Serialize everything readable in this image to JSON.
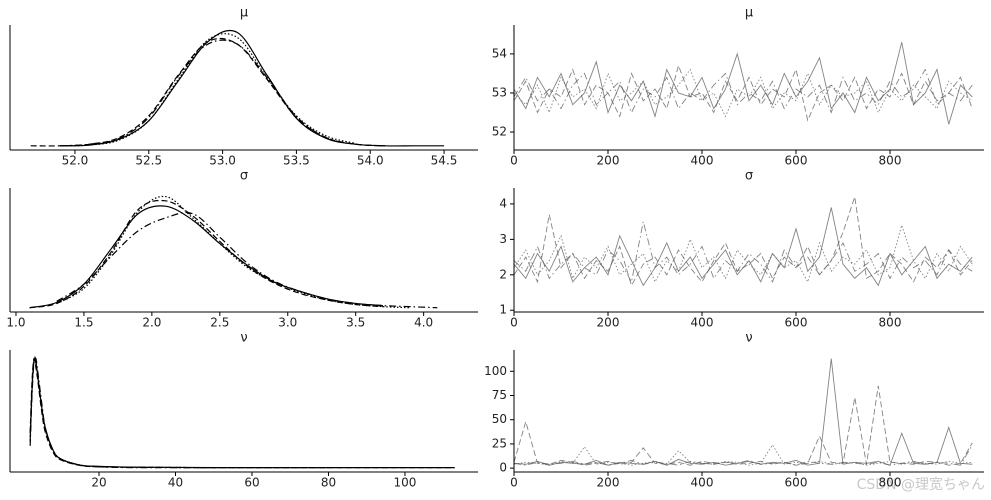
{
  "chart_data": [
    {
      "type": "line",
      "title": "μ",
      "color": "#000000",
      "x": [
        51.7,
        51.9,
        52.1,
        52.3,
        52.5,
        52.7,
        52.9,
        53.1,
        53.3,
        53.5,
        53.7,
        53.9,
        54.1,
        54.3,
        54.5
      ],
      "xlim": [
        51.56,
        54.73
      ],
      "xticks": [
        {
          "value": 52,
          "label": "52.0"
        },
        52.5,
        {
          "value": 53,
          "label": "53.0"
        },
        53.5,
        {
          "value": 54,
          "label": "54.0"
        },
        54.5
      ],
      "ylim": [
        -0.05,
        1.45
      ],
      "series": [
        {
          "linestyle": "solid",
          "values": [
            null,
            0.0,
            0.01,
            0.08,
            0.3,
            0.78,
            1.25,
            1.36,
            0.85,
            0.33,
            0.09,
            0.02,
            0.0,
            0.0,
            0.0
          ]
        },
        {
          "linestyle": "dashed",
          "values": [
            0.0,
            0.0,
            0.02,
            0.1,
            0.36,
            0.85,
            1.25,
            1.22,
            0.8,
            0.34,
            0.1,
            0.02,
            0.0,
            null,
            null
          ]
        },
        {
          "linestyle": "dotted",
          "values": [
            null,
            0.0,
            0.01,
            0.07,
            0.3,
            0.8,
            1.27,
            1.3,
            0.82,
            0.36,
            0.12,
            0.03,
            null,
            null,
            null
          ]
        },
        {
          "linestyle": "dashdot",
          "values": [
            null,
            0.0,
            0.02,
            0.09,
            0.34,
            0.84,
            1.22,
            1.22,
            0.82,
            0.35,
            0.1,
            0.02,
            0.0,
            null,
            null
          ]
        }
      ]
    },
    {
      "type": "line",
      "title": "μ",
      "color": "#5a5a5a",
      "x": [
        0,
        25,
        50,
        75,
        100,
        125,
        150,
        175,
        200,
        225,
        250,
        275,
        300,
        325,
        350,
        375,
        400,
        425,
        450,
        475,
        500,
        525,
        550,
        575,
        600,
        625,
        650,
        675,
        700,
        725,
        750,
        775,
        800,
        825,
        850,
        875,
        900,
        925,
        950,
        975
      ],
      "xlim": [
        0,
        1000
      ],
      "xticks": [
        0,
        200,
        400,
        600,
        800
      ],
      "ylim": [
        51.54,
        54.74
      ],
      "yticks": [
        52,
        53,
        54
      ],
      "series": [
        {
          "linestyle": "solid",
          "values": [
            53.1,
            52.6,
            53.4,
            52.9,
            53.5,
            52.7,
            53.0,
            53.8,
            52.5,
            53.2,
            52.8,
            53.3,
            52.4,
            53.6,
            53.0,
            52.9,
            53.4,
            52.6,
            53.1,
            54.0,
            52.8,
            53.2,
            52.7,
            53.5,
            52.9,
            53.3,
            53.9,
            52.6,
            53.0,
            52.5,
            53.4,
            52.8,
            53.1,
            54.3,
            52.7,
            53.0,
            53.6,
            52.2,
            53.2,
            52.9
          ]
        },
        {
          "linestyle": "dashed",
          "values": [
            52.8,
            53.3,
            52.5,
            53.1,
            52.9,
            53.6,
            52.7,
            53.2,
            53.0,
            52.4,
            53.5,
            52.8,
            53.1,
            52.6,
            53.7,
            52.9,
            53.0,
            52.5,
            53.3,
            52.8,
            53.4,
            52.7,
            53.1,
            52.9,
            53.6,
            52.3,
            53.0,
            53.2,
            52.8,
            53.4,
            52.6,
            53.1,
            52.9,
            53.5,
            52.7,
            53.3,
            52.8,
            53.0,
            53.4,
            52.6
          ]
        },
        {
          "linestyle": "dotted",
          "values": [
            53.0,
            52.7,
            53.2,
            52.5,
            53.4,
            52.9,
            53.1,
            52.6,
            53.5,
            52.8,
            53.0,
            53.3,
            52.7,
            52.9,
            53.2,
            53.6,
            52.8,
            53.0,
            52.4,
            53.1,
            52.9,
            53.4,
            52.6,
            53.0,
            52.8,
            53.5,
            52.7,
            53.2,
            52.9,
            53.0,
            53.3,
            52.5,
            53.1,
            52.8,
            53.2,
            52.9,
            52.6,
            53.3,
            53.0,
            52.8
          ]
        },
        {
          "linestyle": "dashdot",
          "values": [
            52.9,
            53.4,
            52.8,
            53.1,
            52.6,
            53.2,
            53.5,
            52.7,
            53.0,
            53.3,
            52.5,
            53.1,
            52.9,
            53.4,
            52.6,
            53.0,
            52.8,
            53.2,
            53.5,
            52.7,
            53.0,
            52.8,
            53.3,
            52.6,
            53.1,
            52.9,
            53.2,
            52.5,
            53.4,
            52.8,
            53.0,
            52.7,
            53.3,
            52.9,
            53.1,
            53.6,
            52.7,
            53.0,
            52.8,
            53.2
          ]
        }
      ]
    },
    {
      "type": "line",
      "title": "σ",
      "color": "#000000",
      "x": [
        1.1,
        1.3,
        1.5,
        1.7,
        1.9,
        2.1,
        2.3,
        2.5,
        2.7,
        2.9,
        3.1,
        3.3,
        3.5,
        3.7,
        3.9,
        4.1
      ],
      "xlim": [
        0.956,
        4.4
      ],
      "xticks": [
        {
          "value": 1,
          "label": "1.0"
        },
        1.5,
        {
          "value": 2,
          "label": "2.0"
        },
        2.5,
        {
          "value": 3,
          "label": "3.0"
        },
        3.5,
        {
          "value": 4,
          "label": "4.0"
        }
      ],
      "ylim": [
        -0.04,
        1.12
      ],
      "series": [
        {
          "linestyle": "solid",
          "values": [
            0.0,
            0.05,
            0.22,
            0.55,
            0.88,
            0.95,
            0.82,
            0.6,
            0.4,
            0.24,
            0.15,
            0.08,
            0.04,
            0.02,
            null,
            null
          ]
        },
        {
          "linestyle": "dashed",
          "values": [
            0.0,
            0.04,
            0.2,
            0.52,
            0.92,
            1.0,
            0.86,
            0.62,
            0.39,
            0.23,
            0.13,
            0.07,
            0.03,
            0.01,
            null,
            null
          ]
        },
        {
          "linestyle": "dotted",
          "values": [
            null,
            0.04,
            0.18,
            0.5,
            0.9,
            1.04,
            0.84,
            0.6,
            0.38,
            0.24,
            0.14,
            0.07,
            0.03,
            0.01,
            0.0,
            null
          ]
        },
        {
          "linestyle": "dashdot",
          "values": [
            null,
            0.06,
            0.22,
            0.48,
            0.72,
            0.84,
            0.88,
            0.66,
            0.42,
            0.25,
            0.15,
            0.08,
            0.04,
            0.02,
            0.01,
            0.0
          ]
        }
      ]
    },
    {
      "type": "line",
      "title": "σ",
      "color": "#5a5a5a",
      "x": [
        0,
        25,
        50,
        75,
        100,
        125,
        150,
        175,
        200,
        225,
        250,
        275,
        300,
        325,
        350,
        375,
        400,
        425,
        450,
        475,
        500,
        525,
        550,
        575,
        600,
        625,
        650,
        675,
        700,
        725,
        750,
        775,
        800,
        825,
        850,
        875,
        900,
        925,
        950,
        975
      ],
      "xlim": [
        0,
        1000
      ],
      "xticks": [
        0,
        200,
        400,
        600,
        800
      ],
      "ylim": [
        0.95,
        4.45
      ],
      "yticks": [
        1,
        2,
        3,
        4
      ],
      "series": [
        {
          "linestyle": "solid",
          "values": [
            2.3,
            1.9,
            2.6,
            2.1,
            2.8,
            1.8,
            2.2,
            2.5,
            2.0,
            3.1,
            2.4,
            1.7,
            2.2,
            2.9,
            2.1,
            2.5,
            1.9,
            2.3,
            2.7,
            2.0,
            2.4,
            1.8,
            2.6,
            2.2,
            3.3,
            2.1,
            2.5,
            3.9,
            2.3,
            1.9,
            2.2,
            1.7,
            2.6,
            2.0,
            2.4,
            2.8,
            1.9,
            2.3,
            2.1,
            2.5
          ]
        },
        {
          "linestyle": "dashed",
          "values": [
            2.0,
            2.5,
            1.8,
            3.7,
            2.2,
            2.6,
            1.9,
            2.4,
            2.1,
            2.8,
            1.7,
            2.3,
            2.5,
            2.0,
            2.7,
            2.2,
            1.8,
            2.4,
            2.9,
            2.1,
            2.3,
            2.6,
            1.9,
            2.5,
            2.2,
            2.8,
            2.0,
            2.4,
            3.2,
            4.2,
            1.9,
            2.1,
            2.6,
            2.3,
            1.8,
            2.5,
            2.2,
            2.7,
            2.0,
            2.4
          ]
        },
        {
          "linestyle": "dotted",
          "values": [
            2.2,
            2.7,
            2.0,
            2.4,
            3.1,
            1.9,
            2.5,
            2.2,
            2.8,
            2.0,
            2.3,
            2.6,
            1.8,
            2.4,
            2.1,
            3.0,
            2.2,
            2.5,
            1.9,
            2.7,
            2.3,
            2.0,
            2.6,
            2.2,
            2.4,
            1.8,
            2.9,
            2.1,
            2.5,
            2.3,
            2.7,
            2.0,
            2.2,
            3.4,
            2.4,
            1.9,
            2.6,
            2.1,
            2.8,
            2.3
          ]
        },
        {
          "linestyle": "dashdot",
          "values": [
            2.4,
            2.1,
            2.8,
            1.9,
            2.3,
            2.6,
            2.2,
            2.0,
            2.7,
            2.4,
            1.8,
            3.5,
            2.2,
            2.5,
            2.0,
            2.3,
            2.8,
            1.9,
            2.4,
            2.1,
            2.6,
            2.3,
            1.8,
            2.7,
            2.2,
            2.5,
            2.0,
            2.4,
            2.9,
            2.1,
            2.3,
            2.6,
            1.9,
            2.5,
            2.2,
            2.4,
            2.0,
            2.7,
            2.3,
            2.1
          ]
        }
      ]
    },
    {
      "type": "line",
      "title": "ν",
      "color": "#000000",
      "x": [
        2,
        2.5,
        3,
        3.5,
        4,
        5,
        6,
        8,
        10,
        15,
        20,
        30,
        50,
        80,
        113
      ],
      "xlim": [
        -3.27,
        119.1
      ],
      "xticks": [
        20,
        40,
        60,
        80,
        100
      ],
      "ylim": [
        -0.01,
        0.27
      ],
      "series": [
        {
          "linestyle": "solid",
          "values": [
            0.06,
            0.18,
            0.245,
            0.24,
            0.21,
            0.14,
            0.09,
            0.04,
            0.02,
            0.006,
            0.003,
            0.001,
            0.0,
            0.0,
            0.0
          ]
        },
        {
          "linestyle": "dashed",
          "values": [
            0.08,
            0.2,
            0.25,
            0.23,
            0.2,
            0.13,
            0.08,
            0.035,
            0.018,
            0.005,
            0.002,
            0.001,
            0.0,
            0.0,
            0.0
          ]
        },
        {
          "linestyle": "dotted",
          "values": [
            0.07,
            0.19,
            0.25,
            0.245,
            0.21,
            0.14,
            0.085,
            0.04,
            0.02,
            0.006,
            0.002,
            0.001,
            0.0,
            0.0,
            null
          ]
        },
        {
          "linestyle": "dashdot",
          "values": [
            0.05,
            0.17,
            0.24,
            0.25,
            0.22,
            0.15,
            0.09,
            0.04,
            0.02,
            0.006,
            0.002,
            0.0,
            0.0,
            null,
            null
          ]
        }
      ]
    },
    {
      "type": "line",
      "title": "ν",
      "color": "#5a5a5a",
      "x": [
        0,
        25,
        50,
        75,
        100,
        125,
        150,
        175,
        200,
        225,
        250,
        275,
        300,
        325,
        350,
        375,
        400,
        425,
        450,
        475,
        500,
        525,
        550,
        575,
        600,
        625,
        650,
        675,
        700,
        725,
        750,
        775,
        800,
        825,
        850,
        875,
        900,
        925,
        950,
        975
      ],
      "xlim": [
        0,
        1000
      ],
      "xticks": [
        0,
        200,
        400,
        600,
        800
      ],
      "ylim": [
        -4,
        122
      ],
      "yticks": [
        0,
        25,
        50,
        75,
        100
      ],
      "series": [
        {
          "linestyle": "solid",
          "values": [
            5,
            4,
            7,
            3,
            6,
            5,
            4,
            8,
            3,
            6,
            5,
            4,
            7,
            3,
            9,
            5,
            4,
            6,
            3,
            5,
            7,
            4,
            6,
            5,
            8,
            3,
            5,
            113,
            4,
            6,
            5,
            7,
            3,
            36,
            5,
            4,
            6,
            42,
            5,
            4
          ]
        },
        {
          "linestyle": "dashed",
          "values": [
            6,
            48,
            5,
            4,
            8,
            6,
            3,
            5,
            7,
            4,
            6,
            21,
            5,
            4,
            6,
            3,
            7,
            5,
            6,
            4,
            5,
            7,
            4,
            6,
            3,
            5,
            33,
            6,
            5,
            73,
            4,
            85,
            6,
            5,
            4,
            7,
            6,
            3,
            5,
            26
          ]
        },
        {
          "linestyle": "dotted",
          "values": [
            4,
            6,
            5,
            3,
            7,
            5,
            22,
            4,
            6,
            5,
            3,
            5,
            7,
            4,
            18,
            6,
            5,
            4,
            7,
            6,
            3,
            5,
            24,
            4,
            6,
            5,
            7,
            4,
            5,
            6,
            3,
            5,
            7,
            4,
            6,
            5,
            4,
            7,
            5,
            6
          ]
        },
        {
          "linestyle": "dashdot",
          "values": [
            5,
            3,
            6,
            4,
            5,
            7,
            4,
            6,
            3,
            5,
            8,
            4,
            6,
            5,
            3,
            7,
            5,
            4,
            6,
            5,
            8,
            4,
            5,
            6,
            3,
            7,
            5,
            4,
            6,
            5,
            4,
            6,
            3,
            5,
            7,
            4,
            6,
            5,
            3,
            24
          ]
        }
      ]
    }
  ],
  "watermark": "CSDN @理宽ちゃん"
}
